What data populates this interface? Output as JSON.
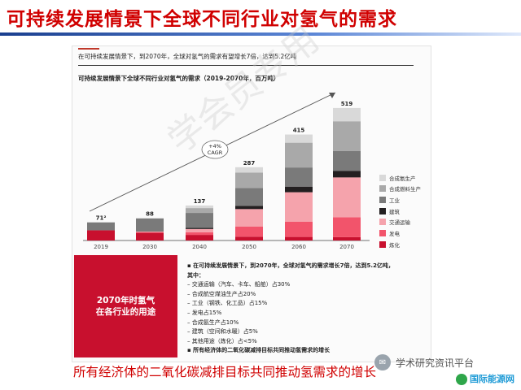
{
  "title": "可持续发展情景下全球不同行业对氢气的需求",
  "subtitle_top": "在可持续发展情景下，到2070年，全球对氢气的需求有望增长7倍，达到5.2亿吨",
  "chart_data": {
    "type": "bar",
    "stacked": true,
    "title": "可持续发展情景下全球不同行业对氢气的需求（2019-2070年，百万吨）",
    "categories": [
      "2019",
      "2030",
      "2040",
      "2050",
      "2060",
      "2070"
    ],
    "totals": [
      "71²",
      "88",
      "137",
      "287",
      "415",
      "519"
    ],
    "series": [
      {
        "name": "炼化",
        "color": "#c8102e",
        "values": [
          40,
          30,
          22,
          15,
          14,
          13
        ]
      },
      {
        "name": "发电",
        "color": "#f2546b",
        "values": [
          0,
          3,
          10,
          40,
          60,
          78
        ]
      },
      {
        "name": "交通运输",
        "color": "#f5a3ac",
        "values": [
          0,
          2,
          13,
          68,
          115,
          156
        ]
      },
      {
        "name": "建筑",
        "color": "#231f20",
        "values": [
          0,
          1,
          5,
          13,
          22,
          26
        ]
      },
      {
        "name": "工业",
        "color": "#7a7a7a",
        "values": [
          31,
          50,
          58,
          70,
          75,
          78
        ]
      },
      {
        "name": "合成燃料生产",
        "color": "#a9a9a9",
        "values": [
          0,
          1,
          19,
          60,
          97,
          116
        ]
      },
      {
        "name": "合成氨生产",
        "color": "#d9d9d9",
        "values": [
          0,
          1,
          10,
          21,
          32,
          52
        ]
      }
    ],
    "legend_order": [
      "合成氨生产",
      "合成燃料生产",
      "工业",
      "建筑",
      "交通运输",
      "发电",
      "炼化"
    ],
    "ylim": [
      0,
      560
    ],
    "annotation": "+4%\nCAGR",
    "legend_position": "right",
    "grid": false
  },
  "red_box_text": "2070年时氢气\n在各行业的用途",
  "notes": [
    {
      "text": "▪ 在可持续发展情景下，到2070年，全球对氢气的需求增长7倍，达到5.2亿吨，",
      "bold": true
    },
    {
      "text": "  其中：",
      "bold": true
    },
    {
      "text": "  – 交通运输（汽车、卡车、船舶）占30%",
      "bold": false
    },
    {
      "text": "  – 合成航空煤油生产占20%",
      "bold": false
    },
    {
      "text": "  – 工业（钢铁、化工品）占15%",
      "bold": false
    },
    {
      "text": "  – 发电占15%",
      "bold": false
    },
    {
      "text": "  – 合成氨生产占10%",
      "bold": false
    },
    {
      "text": "  – 建筑（空间和水暖）占5%",
      "bold": false
    },
    {
      "text": "  – 其他用途（炼化）占<5%",
      "bold": false
    },
    {
      "text": "▪ 所有经济体的二氧化碳减排目标共同推动氢需求的增长",
      "bold": true
    }
  ],
  "caption": "所有经济体的二氧化碳减排目标共同推动氢需求的增长",
  "watermark_text": "学术研究资讯平台",
  "watermark_logo": "国际能源网",
  "diagonal_watermark": "学会员专用"
}
